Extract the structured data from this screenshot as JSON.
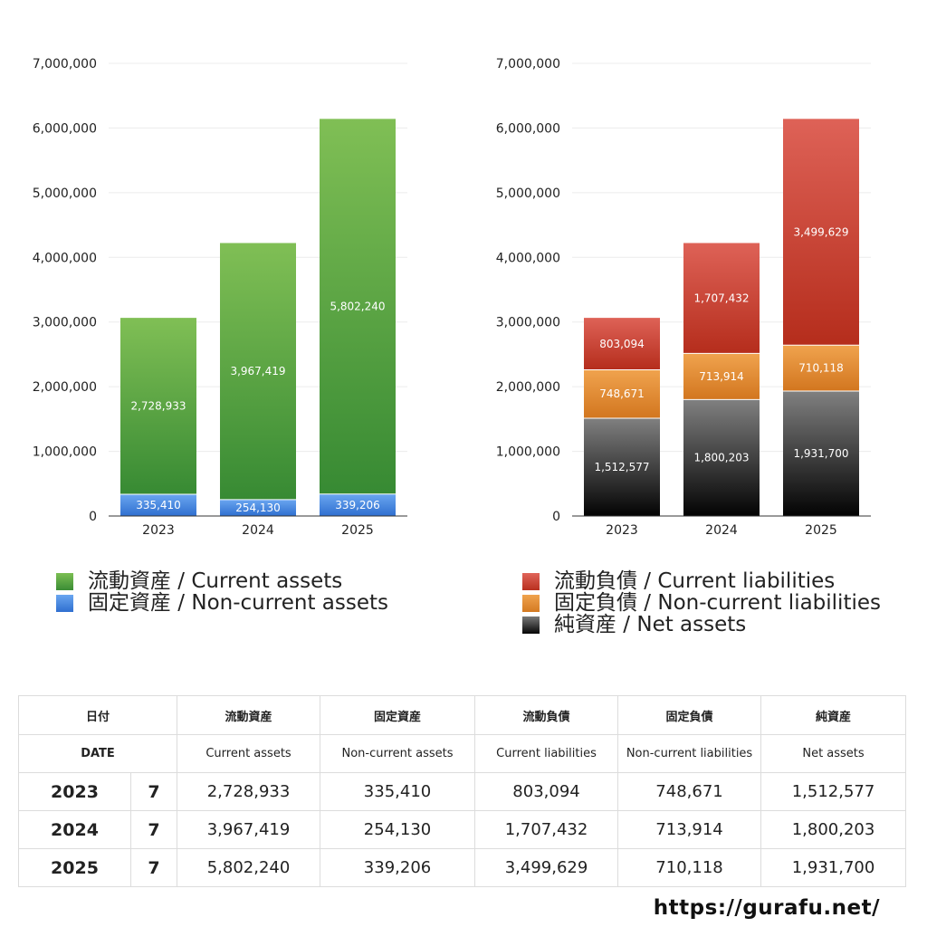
{
  "chart_data": [
    {
      "type": "bar",
      "stacked": true,
      "categories": [
        "2023",
        "2024",
        "2025"
      ],
      "y_ticks": [
        "0",
        "1,000,000",
        "2,000,000",
        "3,000,000",
        "4,000,000",
        "5,000,000",
        "6,000,000",
        "7,000,000"
      ],
      "ylim": [
        0,
        7000000
      ],
      "grid": true,
      "legend_placement": "bottom",
      "series": [
        {
          "name": "固定資産 / Non-current assets",
          "values": [
            335410,
            254130,
            339206
          ],
          "labels": [
            "335,410",
            "254,130",
            "339,206"
          ],
          "color_top": "#6aa6f0",
          "color_bottom": "#2f6fd0",
          "gradient_id": "g-blue"
        },
        {
          "name": "流動資産 / Current assets",
          "values": [
            2728933,
            3967419,
            5802240
          ],
          "labels": [
            "2,728,933",
            "3,967,419",
            "5,802,240"
          ],
          "color_top": "#80bf55",
          "color_bottom": "#378a33",
          "gradient_id": "g-green"
        }
      ],
      "legend": [
        {
          "label": "流動資産 / Current assets",
          "swatch": "green"
        },
        {
          "label": "固定資産 / Non-current assets",
          "swatch": "blue"
        }
      ]
    },
    {
      "type": "bar",
      "stacked": true,
      "categories": [
        "2023",
        "2024",
        "2025"
      ],
      "y_ticks": [
        "0",
        "1,000,000",
        "2,000,000",
        "3,000,000",
        "4,000,000",
        "5,000,000",
        "6,000,000",
        "7,000,000"
      ],
      "ylim": [
        0,
        7000000
      ],
      "grid": true,
      "legend_placement": "bottom",
      "series": [
        {
          "name": "純資産 / Net assets",
          "values": [
            1512577,
            1800203,
            1931700
          ],
          "labels": [
            "1,512,577",
            "1,800,203",
            "1,931,700"
          ],
          "color_top": "#808080",
          "color_bottom": "#030303",
          "gradient_id": "g-black"
        },
        {
          "name": "固定負債 / Non-current liabilities",
          "values": [
            748671,
            713914,
            710118
          ],
          "labels": [
            "748,671",
            "713,914",
            "710,118"
          ],
          "color_top": "#f0a34e",
          "color_bottom": "#d2761f",
          "gradient_id": "g-orange"
        },
        {
          "name": "流動負債 / Current liabilities",
          "values": [
            803094,
            1707432,
            3499629
          ],
          "labels": [
            "803,094",
            "1,707,432",
            "3,499,629"
          ],
          "color_top": "#de6257",
          "color_bottom": "#b52d1c",
          "gradient_id": "g-red"
        }
      ],
      "legend": [
        {
          "label": "流動負債 / Current liabilities",
          "swatch": "red"
        },
        {
          "label": "固定負債 / Non-current liabilities",
          "swatch": "orange"
        },
        {
          "label": "純資産 / Net assets",
          "swatch": "black"
        }
      ]
    }
  ],
  "table": {
    "header_jp": [
      "日付",
      "流動資産",
      "固定資産",
      "流動負債",
      "固定負債",
      "純資産"
    ],
    "header_en": [
      "DATE",
      "Current assets",
      "Non-current assets",
      "Current liabilities",
      "Non-current liabilities",
      "Net assets"
    ],
    "rows": [
      {
        "year": "2023",
        "month": "7",
        "values": [
          "2,728,933",
          "335,410",
          "803,094",
          "748,671",
          "1,512,577"
        ]
      },
      {
        "year": "2024",
        "month": "7",
        "values": [
          "3,967,419",
          "254,130",
          "1,707,432",
          "713,914",
          "1,800,203"
        ]
      },
      {
        "year": "2025",
        "month": "7",
        "values": [
          "5,802,240",
          "339,206",
          "3,499,629",
          "710,118",
          "1,931,700"
        ]
      }
    ]
  },
  "footer": {
    "site": "https://gurafu.net/"
  }
}
